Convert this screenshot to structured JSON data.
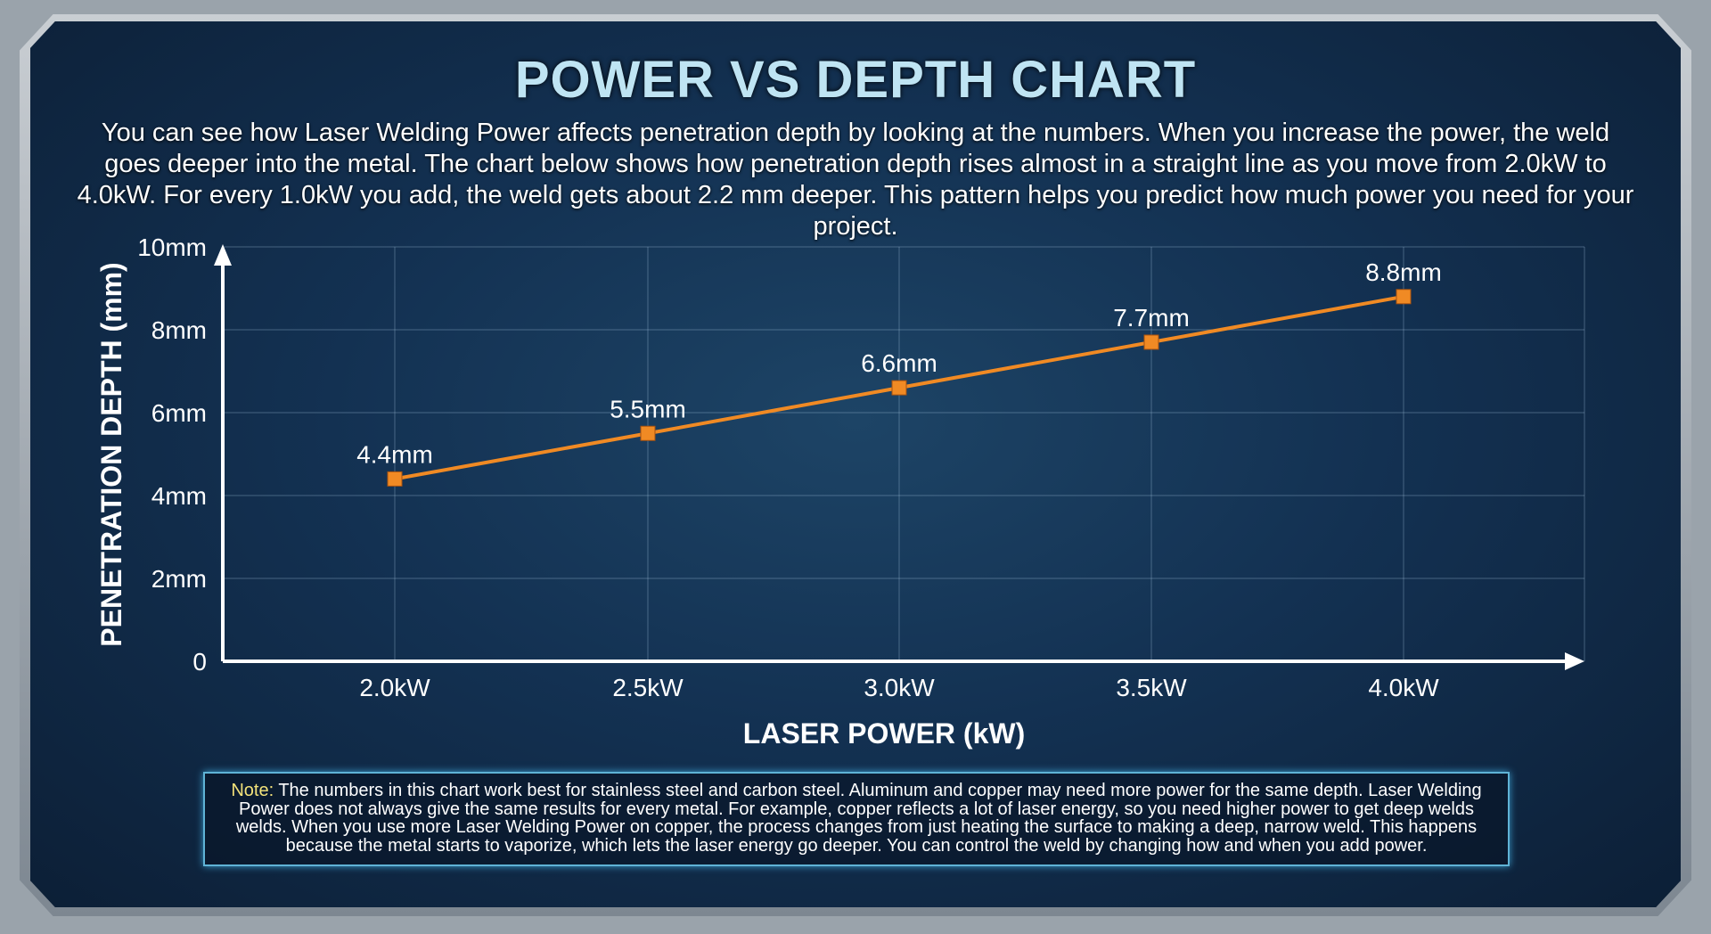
{
  "title": "POWER VS DEPTH CHART",
  "subtitle": "You can see how Laser Welding Power affects penetration depth by looking at the numbers. When you increase the power, the weld goes deeper into the metal. The chart below shows how penetration depth rises almost in a straight line as you move from 2.0kW to 4.0kW. For every 1.0kW you add, the weld gets about 2.2 mm deeper. This pattern helps you predict how much power you need for your project.",
  "note": {
    "label": "Note:",
    "text": " The numbers in this chart work best for stainless steel and carbon steel. Aluminum and copper may need more power for the same depth. Laser Welding Power does not always give the same results for every metal. For example, copper reflects a lot of laser energy, so you need higher power to get deep welds welds. When you use more Laser Welding Power on copper, the process changes from just heating the surface to making a deep, narrow weld. This happens because the metal starts to vaporize, which lets the laser energy go deeper. You can control the weld by changing how and when you add power."
  },
  "chart_data": {
    "type": "line",
    "categories": [
      "2.0kW",
      "2.5kW",
      "3.0kW",
      "3.5kW",
      "4.0kW"
    ],
    "values": [
      4.4,
      5.5,
      6.6,
      7.7,
      8.8
    ],
    "data_labels": [
      "4.4mm",
      "5.5mm",
      "6.6mm",
      "7.7mm",
      "8.8mm"
    ],
    "xlabel": "LASER POWER (kW)",
    "ylabel": "PENETRATION DEPTH (mm)",
    "ylim": [
      0,
      10
    ],
    "yticks": [
      0,
      2,
      4,
      6,
      8,
      10
    ],
    "ytick_labels": [
      "0",
      "2mm",
      "4mm",
      "6mm",
      "8mm",
      "10mm"
    ],
    "grid": true,
    "line_color": "#f08a24",
    "marker_color": "#f08a24"
  }
}
